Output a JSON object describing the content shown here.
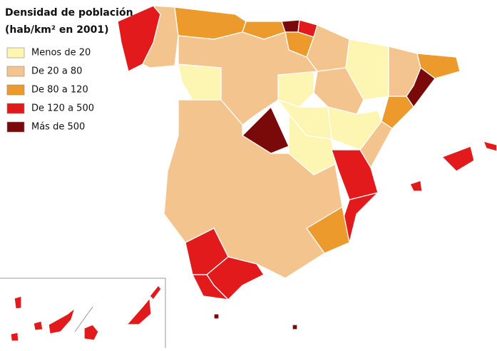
{
  "title": "Densidad de población",
  "subtitle": "(hab/km² en 2001)",
  "legend": [
    {
      "label": "Menos de 20",
      "color": "#fdf6b2"
    },
    {
      "label": "De 20 a 80",
      "color": "#f4c48e"
    },
    {
      "label": "De 80 a 120",
      "color": "#eb9a2b"
    },
    {
      "label": "De 120 a 500",
      "color": "#e31a1c"
    },
    {
      "label": "Más de 500",
      "color": "#7a0a0a"
    }
  ]
}
